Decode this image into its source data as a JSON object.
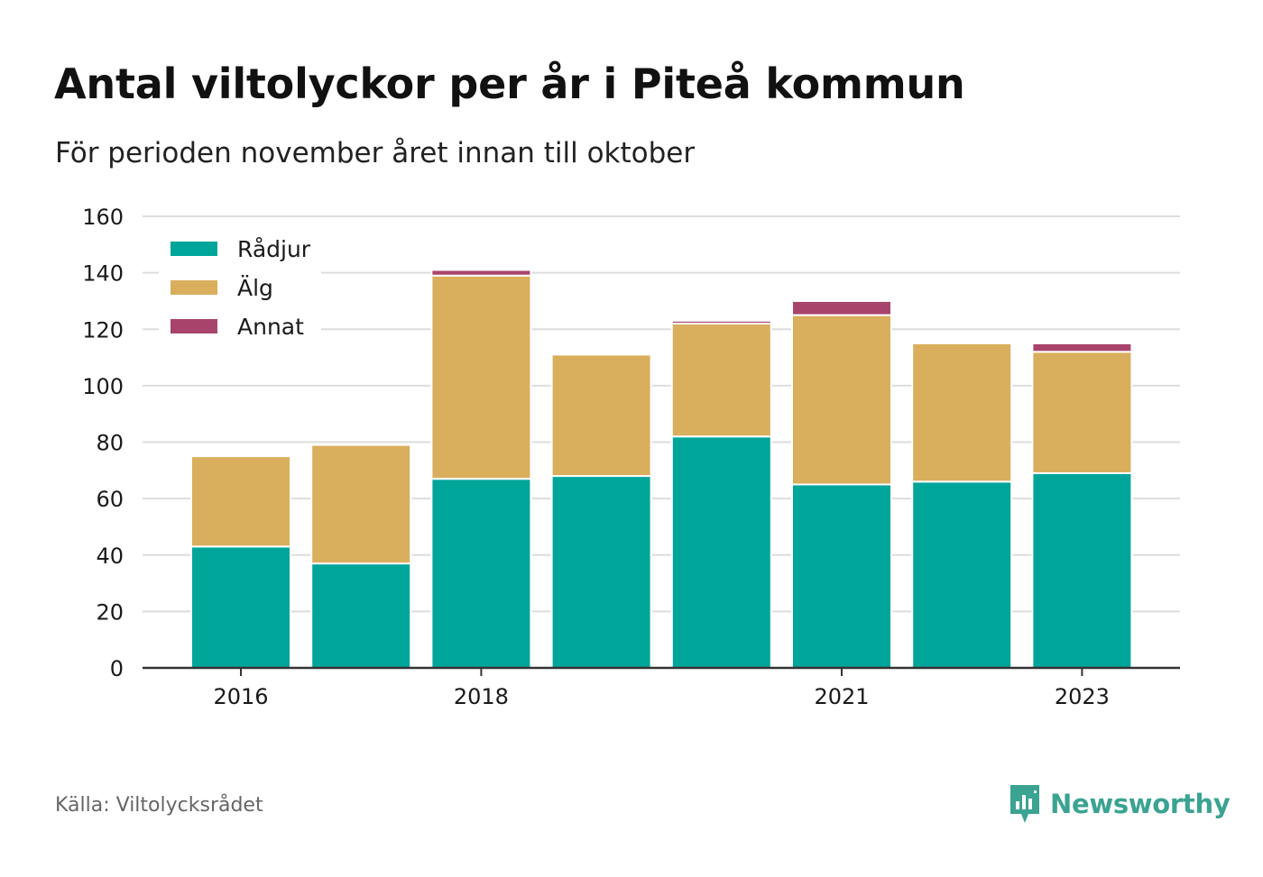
{
  "header": {
    "title": "Antal viltolyckor per år i Piteå kommun",
    "subtitle": "För perioden november året innan till oktober"
  },
  "footer": {
    "source": "Källa: Viltolycksrådet",
    "brand": "Newsworthy",
    "brand_icon": "bar-chart-speech-icon"
  },
  "colors": {
    "radjur": "#00a59a",
    "alg": "#d9ae5c",
    "annat": "#a8446b",
    "grid": "#dddddd",
    "axis": "#333333",
    "text": "#1a1a1a",
    "brand": "#3aa391"
  },
  "chart_data": {
    "type": "bar",
    "stacked": true,
    "categories": [
      "2016",
      "2017",
      "2018",
      "2019",
      "2020",
      "2021",
      "2022",
      "2023"
    ],
    "x_tick_labels": [
      "2016",
      "2018",
      "2021",
      "2023"
    ],
    "series": [
      {
        "name": "Rådjur",
        "color": "#00a59a",
        "values": [
          43,
          37,
          67,
          68,
          82,
          65,
          66,
          69
        ]
      },
      {
        "name": "Älg",
        "color": "#d9ae5c",
        "values": [
          32,
          42,
          72,
          43,
          40,
          60,
          49,
          43
        ]
      },
      {
        "name": "Annat",
        "color": "#a8446b",
        "values": [
          0,
          0,
          2,
          0,
          1,
          5,
          0,
          3
        ]
      }
    ],
    "ylim": [
      0,
      160
    ],
    "yticks": [
      0,
      20,
      40,
      60,
      80,
      100,
      120,
      140,
      160
    ],
    "grid": true,
    "legend_position": "top-left",
    "xlabel": "",
    "ylabel": ""
  }
}
